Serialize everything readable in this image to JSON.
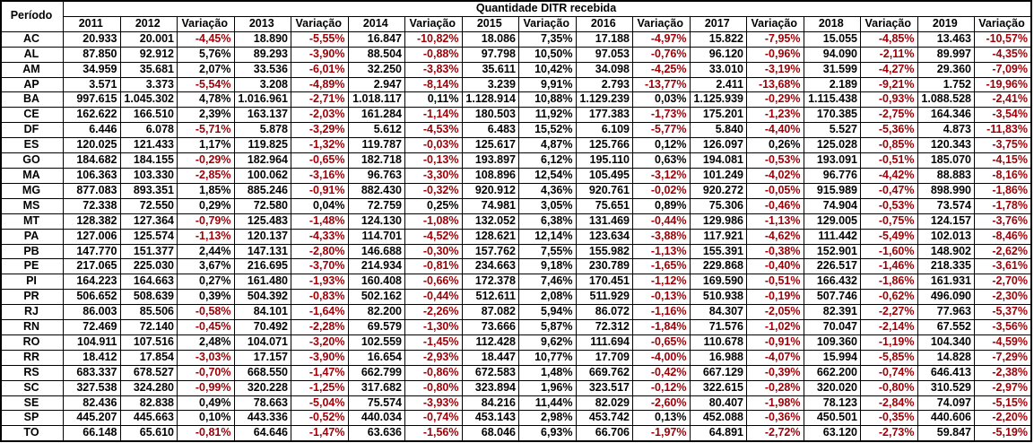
{
  "colors": {
    "negative_text": "#9C0006",
    "positive_text": "#000000",
    "border": "#000000",
    "background": "#FFFFFF"
  },
  "chart_data": {
    "type": "table",
    "title": "Quantidade DITR recebida",
    "row_header": "Período",
    "columns": [
      "2011",
      "2012",
      "Variação",
      "2013",
      "Variação",
      "2014",
      "Variação",
      "2015",
      "Variação",
      "2016",
      "Variação",
      "2017",
      "Variação",
      "2018",
      "Variação",
      "2019",
      "Variação"
    ],
    "rows": [
      {
        "state": "AC",
        "values": [
          "20.933",
          "20.001",
          "-4,45%",
          "18.890",
          "-5,55%",
          "16.847",
          "-10,82%",
          "18.086",
          "7,35%",
          "17.188",
          "-4,97%",
          "15.822",
          "-7,95%",
          "15.055",
          "-4,85%",
          "13.463",
          "-10,57%"
        ]
      },
      {
        "state": "AL",
        "values": [
          "87.850",
          "92.912",
          "5,76%",
          "89.293",
          "-3,90%",
          "88.504",
          "-0,88%",
          "97.798",
          "10,50%",
          "97.053",
          "-0,76%",
          "96.120",
          "-0,96%",
          "94.090",
          "-2,11%",
          "89.997",
          "-4,35%"
        ]
      },
      {
        "state": "AM",
        "values": [
          "34.959",
          "35.681",
          "2,07%",
          "33.536",
          "-6,01%",
          "32.250",
          "-3,83%",
          "35.611",
          "10,42%",
          "34.098",
          "-4,25%",
          "33.010",
          "-3,19%",
          "31.599",
          "-4,27%",
          "29.360",
          "-7,09%"
        ]
      },
      {
        "state": "AP",
        "values": [
          "3.571",
          "3.373",
          "-5,54%",
          "3.208",
          "-4,89%",
          "2.947",
          "-8,14%",
          "3.239",
          "9,91%",
          "2.793",
          "-13,77%",
          "2.411",
          "-13,68%",
          "2.189",
          "-9,21%",
          "1.752",
          "-19,96%"
        ]
      },
      {
        "state": "BA",
        "values": [
          "997.615",
          "1.045.302",
          "4,78%",
          "1.016.961",
          "-2,71%",
          "1.018.117",
          "0,11%",
          "1.128.914",
          "10,88%",
          "1.129.239",
          "0,03%",
          "1.125.939",
          "-0,29%",
          "1.115.438",
          "-0,93%",
          "1.088.528",
          "-2,41%"
        ]
      },
      {
        "state": "CE",
        "values": [
          "162.622",
          "166.510",
          "2,39%",
          "163.137",
          "-2,03%",
          "161.284",
          "-1,14%",
          "180.503",
          "11,92%",
          "177.383",
          "-1,73%",
          "175.201",
          "-1,23%",
          "170.385",
          "-2,75%",
          "164.346",
          "-3,54%"
        ]
      },
      {
        "state": "DF",
        "values": [
          "6.446",
          "6.078",
          "-5,71%",
          "5.878",
          "-3,29%",
          "5.612",
          "-4,53%",
          "6.483",
          "15,52%",
          "6.109",
          "-5,77%",
          "5.840",
          "-4,40%",
          "5.527",
          "-5,36%",
          "4.873",
          "-11,83%"
        ]
      },
      {
        "state": "ES",
        "values": [
          "120.025",
          "121.433",
          "1,17%",
          "119.825",
          "-1,32%",
          "119.787",
          "-0,03%",
          "125.617",
          "4,87%",
          "125.766",
          "0,12%",
          "126.097",
          "0,26%",
          "125.028",
          "-0,85%",
          "120.343",
          "-3,75%"
        ]
      },
      {
        "state": "GO",
        "values": [
          "184.682",
          "184.155",
          "-0,29%",
          "182.964",
          "-0,65%",
          "182.718",
          "-0,13%",
          "193.897",
          "6,12%",
          "195.110",
          "0,63%",
          "194.081",
          "-0,53%",
          "193.091",
          "-0,51%",
          "185.070",
          "-4,15%"
        ]
      },
      {
        "state": "MA",
        "values": [
          "106.363",
          "103.330",
          "-2,85%",
          "100.062",
          "-3,16%",
          "96.763",
          "-3,30%",
          "108.896",
          "12,54%",
          "105.495",
          "-3,12%",
          "101.249",
          "-4,02%",
          "96.776",
          "-4,42%",
          "88.883",
          "-8,16%"
        ]
      },
      {
        "state": "MG",
        "values": [
          "877.083",
          "893.351",
          "1,85%",
          "885.246",
          "-0,91%",
          "882.430",
          "-0,32%",
          "920.912",
          "4,36%",
          "920.761",
          "-0,02%",
          "920.272",
          "-0,05%",
          "915.989",
          "-0,47%",
          "898.990",
          "-1,86%"
        ]
      },
      {
        "state": "MS",
        "values": [
          "72.338",
          "72.550",
          "0,29%",
          "72.580",
          "0,04%",
          "72.759",
          "0,25%",
          "74.981",
          "3,05%",
          "75.651",
          "0,89%",
          "75.306",
          "-0,46%",
          "74.904",
          "-0,53%",
          "73.574",
          "-1,78%"
        ]
      },
      {
        "state": "MT",
        "values": [
          "128.382",
          "127.364",
          "-0,79%",
          "125.483",
          "-1,48%",
          "124.130",
          "-1,08%",
          "132.052",
          "6,38%",
          "131.469",
          "-0,44%",
          "129.986",
          "-1,13%",
          "129.005",
          "-0,75%",
          "124.157",
          "-3,76%"
        ]
      },
      {
        "state": "PA",
        "values": [
          "127.006",
          "125.574",
          "-1,13%",
          "120.137",
          "-4,33%",
          "114.701",
          "-4,52%",
          "128.621",
          "12,14%",
          "123.634",
          "-3,88%",
          "117.921",
          "-4,62%",
          "111.442",
          "-5,49%",
          "102.013",
          "-8,46%"
        ]
      },
      {
        "state": "PB",
        "values": [
          "147.770",
          "151.377",
          "2,44%",
          "147.131",
          "-2,80%",
          "146.688",
          "-0,30%",
          "157.762",
          "7,55%",
          "155.982",
          "-1,13%",
          "155.391",
          "-0,38%",
          "152.901",
          "-1,60%",
          "148.902",
          "-2,62%"
        ]
      },
      {
        "state": "PE",
        "values": [
          "217.065",
          "225.030",
          "3,67%",
          "216.695",
          "-3,70%",
          "214.934",
          "-0,81%",
          "234.663",
          "9,18%",
          "230.789",
          "-1,65%",
          "229.868",
          "-0,40%",
          "226.517",
          "-1,46%",
          "218.335",
          "-3,61%"
        ]
      },
      {
        "state": "PI",
        "values": [
          "164.223",
          "164.663",
          "0,27%",
          "161.480",
          "-1,93%",
          "160.408",
          "-0,66%",
          "172.378",
          "7,46%",
          "170.451",
          "-1,12%",
          "169.590",
          "-0,51%",
          "166.432",
          "-1,86%",
          "161.931",
          "-2,70%"
        ]
      },
      {
        "state": "PR",
        "values": [
          "506.652",
          "508.639",
          "0,39%",
          "504.392",
          "-0,83%",
          "502.162",
          "-0,44%",
          "512.611",
          "2,08%",
          "511.929",
          "-0,13%",
          "510.938",
          "-0,19%",
          "507.746",
          "-0,62%",
          "496.090",
          "-2,30%"
        ]
      },
      {
        "state": "RJ",
        "values": [
          "86.003",
          "85.506",
          "-0,58%",
          "84.101",
          "-1,64%",
          "82.200",
          "-2,26%",
          "87.082",
          "5,94%",
          "86.072",
          "-1,16%",
          "84.307",
          "-2,05%",
          "82.391",
          "-2,27%",
          "77.963",
          "-5,37%"
        ]
      },
      {
        "state": "RN",
        "values": [
          "72.469",
          "72.140",
          "-0,45%",
          "70.492",
          "-2,28%",
          "69.579",
          "-1,30%",
          "73.666",
          "5,87%",
          "72.312",
          "-1,84%",
          "71.576",
          "-1,02%",
          "70.047",
          "-2,14%",
          "67.552",
          "-3,56%"
        ]
      },
      {
        "state": "RO",
        "values": [
          "104.911",
          "107.516",
          "2,48%",
          "104.071",
          "-3,20%",
          "102.559",
          "-1,45%",
          "112.428",
          "9,62%",
          "111.694",
          "-0,65%",
          "110.678",
          "-0,91%",
          "109.360",
          "-1,19%",
          "104.340",
          "-4,59%"
        ]
      },
      {
        "state": "RR",
        "values": [
          "18.412",
          "17.854",
          "-3,03%",
          "17.157",
          "-3,90%",
          "16.654",
          "-2,93%",
          "18.447",
          "10,77%",
          "17.709",
          "-4,00%",
          "16.988",
          "-4,07%",
          "15.994",
          "-5,85%",
          "14.828",
          "-7,29%"
        ]
      },
      {
        "state": "RS",
        "values": [
          "683.337",
          "678.527",
          "-0,70%",
          "668.550",
          "-1,47%",
          "662.799",
          "-0,86%",
          "672.583",
          "1,48%",
          "669.762",
          "-0,42%",
          "667.129",
          "-0,39%",
          "662.200",
          "-0,74%",
          "646.413",
          "-2,38%"
        ]
      },
      {
        "state": "SC",
        "values": [
          "327.538",
          "324.280",
          "-0,99%",
          "320.228",
          "-1,25%",
          "317.682",
          "-0,80%",
          "323.894",
          "1,96%",
          "323.517",
          "-0,12%",
          "322.615",
          "-0,28%",
          "320.020",
          "-0,80%",
          "310.529",
          "-2,97%"
        ]
      },
      {
        "state": "SE",
        "values": [
          "82.436",
          "82.838",
          "0,49%",
          "78.663",
          "-5,04%",
          "75.574",
          "-3,93%",
          "84.216",
          "11,44%",
          "82.029",
          "-2,60%",
          "80.407",
          "-1,98%",
          "78.123",
          "-2,84%",
          "74.097",
          "-5,15%"
        ]
      },
      {
        "state": "SP",
        "values": [
          "445.207",
          "445.663",
          "0,10%",
          "443.336",
          "-0,52%",
          "440.034",
          "-0,74%",
          "453.143",
          "2,98%",
          "453.742",
          "0,13%",
          "452.088",
          "-0,36%",
          "450.501",
          "-0,35%",
          "440.606",
          "-2,20%"
        ]
      },
      {
        "state": "TO",
        "values": [
          "66.148",
          "65.610",
          "-0,81%",
          "64.646",
          "-1,47%",
          "63.636",
          "-1,56%",
          "68.046",
          "6,93%",
          "66.706",
          "-1,97%",
          "64.891",
          "-2,72%",
          "63.120",
          "-2,73%",
          "59.847",
          "-5,19%"
        ]
      }
    ]
  }
}
